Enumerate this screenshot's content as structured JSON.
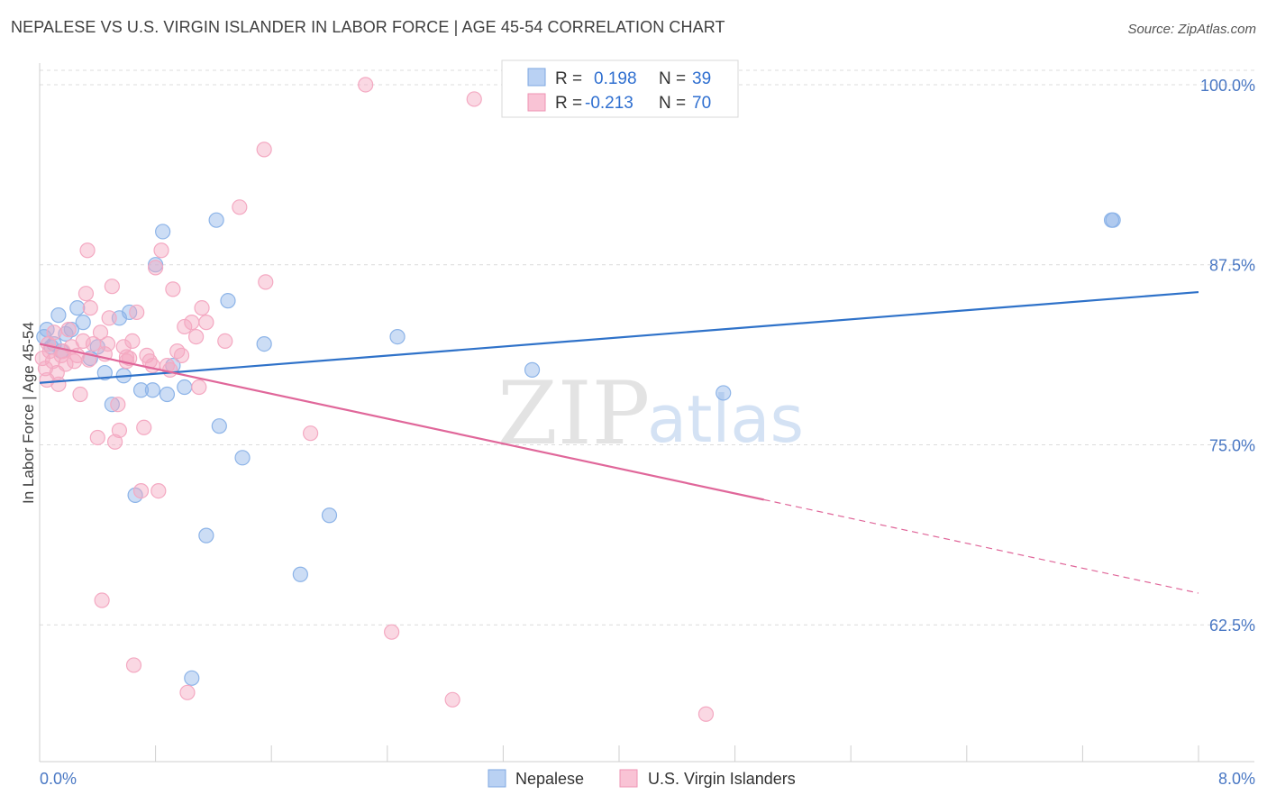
{
  "title": "NEPALESE VS U.S. VIRGIN ISLANDER IN LABOR FORCE | AGE 45-54 CORRELATION CHART",
  "source": "Source: ZipAtlas.com",
  "watermark": {
    "zip": "ZIP",
    "atlas": "atlas"
  },
  "chart_data": {
    "type": "scatter",
    "title": "NEPALESE VS U.S. VIRGIN ISLANDER IN LABOR FORCE | AGE 45-54 CORRELATION CHART",
    "xlabel": "",
    "ylabel": "In Labor Force | Age 45-54",
    "xlim": [
      0,
      8
    ],
    "ylim": [
      53,
      101.5
    ],
    "x_tick_labels": [
      "0.0%",
      "8.0%"
    ],
    "y_ticks": [
      62.5,
      75.0,
      87.5,
      100.0
    ],
    "y_tick_labels": [
      "62.5%",
      "75.0%",
      "87.5%",
      "100.0%"
    ],
    "grid": true,
    "legend_position": "top-center",
    "series": [
      {
        "name": "Nepalese",
        "color": "#8db4e8",
        "line_color": "#2f72c9",
        "R": "0.198",
        "N": "39",
        "trend": {
          "x": [
            0.0,
            8.0
          ],
          "y": [
            79.3,
            85.6
          ],
          "dashed_from": null
        },
        "points": [
          [
            0.03,
            82.5
          ],
          [
            0.05,
            83.0
          ],
          [
            0.08,
            81.8
          ],
          [
            0.1,
            82.0
          ],
          [
            0.13,
            84.0
          ],
          [
            0.15,
            81.5
          ],
          [
            0.18,
            82.7
          ],
          [
            0.22,
            83.0
          ],
          [
            0.26,
            84.5
          ],
          [
            0.3,
            83.5
          ],
          [
            0.35,
            81.0
          ],
          [
            0.4,
            81.8
          ],
          [
            0.45,
            80.0
          ],
          [
            0.5,
            77.8
          ],
          [
            0.55,
            83.8
          ],
          [
            0.58,
            79.8
          ],
          [
            0.62,
            84.2
          ],
          [
            0.66,
            71.5
          ],
          [
            0.7,
            78.8
          ],
          [
            0.78,
            78.8
          ],
          [
            0.8,
            87.5
          ],
          [
            0.85,
            89.8
          ],
          [
            0.88,
            78.5
          ],
          [
            0.92,
            80.5
          ],
          [
            1.0,
            79.0
          ],
          [
            1.05,
            58.8
          ],
          [
            1.15,
            68.7
          ],
          [
            1.22,
            90.6
          ],
          [
            1.24,
            76.3
          ],
          [
            1.3,
            85.0
          ],
          [
            1.4,
            74.1
          ],
          [
            1.55,
            82.0
          ],
          [
            1.8,
            66.0
          ],
          [
            2.0,
            70.1
          ],
          [
            2.47,
            82.5
          ],
          [
            3.4,
            80.2
          ],
          [
            4.72,
            78.6
          ],
          [
            7.4,
            90.6
          ],
          [
            7.41,
            90.6
          ]
        ]
      },
      {
        "name": "U.S. Virgin Islanders",
        "color": "#f4a9c2",
        "line_color": "#e0679a",
        "R": "-0.213",
        "N": "70",
        "trend": {
          "x": [
            0.0,
            8.0
          ],
          "y": [
            82.0,
            64.7
          ],
          "dashed_from": 5.0
        },
        "points": [
          [
            0.02,
            81.0
          ],
          [
            0.04,
            80.3
          ],
          [
            0.05,
            79.5
          ],
          [
            0.07,
            81.5
          ],
          [
            0.09,
            80.8
          ],
          [
            0.1,
            82.8
          ],
          [
            0.12,
            80.0
          ],
          [
            0.13,
            79.2
          ],
          [
            0.15,
            81.2
          ],
          [
            0.18,
            80.6
          ],
          [
            0.2,
            83.0
          ],
          [
            0.22,
            81.8
          ],
          [
            0.24,
            80.8
          ],
          [
            0.26,
            81.2
          ],
          [
            0.28,
            78.5
          ],
          [
            0.3,
            82.2
          ],
          [
            0.32,
            85.5
          ],
          [
            0.33,
            88.5
          ],
          [
            0.35,
            84.5
          ],
          [
            0.37,
            82.0
          ],
          [
            0.4,
            75.5
          ],
          [
            0.42,
            82.8
          ],
          [
            0.43,
            64.2
          ],
          [
            0.45,
            81.3
          ],
          [
            0.47,
            82.0
          ],
          [
            0.48,
            83.8
          ],
          [
            0.5,
            86.0
          ],
          [
            0.52,
            75.2
          ],
          [
            0.54,
            77.8
          ],
          [
            0.55,
            76.0
          ],
          [
            0.58,
            81.8
          ],
          [
            0.6,
            80.8
          ],
          [
            0.62,
            81.0
          ],
          [
            0.64,
            82.2
          ],
          [
            0.65,
            59.7
          ],
          [
            0.67,
            84.2
          ],
          [
            0.7,
            71.8
          ],
          [
            0.72,
            76.2
          ],
          [
            0.74,
            81.2
          ],
          [
            0.76,
            80.8
          ],
          [
            0.78,
            80.5
          ],
          [
            0.8,
            87.3
          ],
          [
            0.82,
            71.8
          ],
          [
            0.84,
            88.5
          ],
          [
            0.88,
            80.5
          ],
          [
            0.9,
            80.2
          ],
          [
            0.92,
            85.8
          ],
          [
            0.95,
            81.5
          ],
          [
            0.98,
            81.2
          ],
          [
            1.0,
            83.2
          ],
          [
            1.02,
            57.8
          ],
          [
            1.05,
            83.5
          ],
          [
            1.08,
            82.5
          ],
          [
            1.1,
            79.0
          ],
          [
            1.12,
            84.5
          ],
          [
            1.15,
            83.5
          ],
          [
            1.28,
            82.2
          ],
          [
            1.38,
            91.5
          ],
          [
            1.55,
            95.5
          ],
          [
            1.56,
            86.3
          ],
          [
            1.87,
            75.8
          ],
          [
            2.25,
            100.0
          ],
          [
            2.43,
            62.0
          ],
          [
            2.85,
            57.3
          ],
          [
            3.0,
            99.0
          ],
          [
            4.6,
            56.3
          ],
          [
            0.06,
            82.0
          ],
          [
            0.16,
            81.5
          ],
          [
            0.34,
            80.9
          ],
          [
            0.6,
            81.1
          ]
        ]
      }
    ]
  },
  "legend": {
    "rows": [
      {
        "r_label": "R =",
        "r_value": "0.198",
        "n_label": "N =",
        "n_value": "39"
      },
      {
        "r_label": "R =",
        "r_value": "-0.213",
        "n_label": "N =",
        "n_value": "70"
      }
    ]
  },
  "bottom_legend": {
    "items": [
      "Nepalese",
      "U.S. Virgin Islanders"
    ]
  }
}
